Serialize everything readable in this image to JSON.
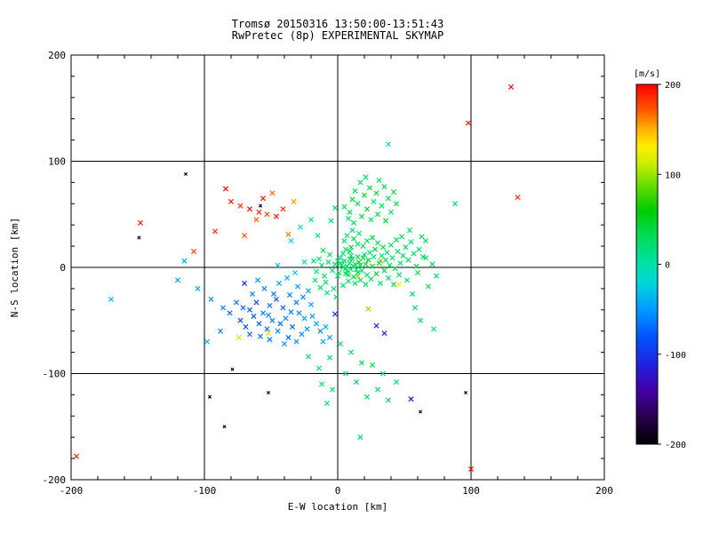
{
  "title": "Tromsø 20150316 13:50:00-13:51:43",
  "subtitle": "RwPretec (8p) EXPERIMENTAL SKYMAP",
  "chart_data": {
    "type": "scatter",
    "marker": "x",
    "title": "Tromsø 20150316 13:50:00-13:51:43",
    "subtitle": "RwPretec (8p) EXPERIMENTAL SKYMAP",
    "xlabel": "E-W location [km]",
    "ylabel": "N-S location [km]",
    "xlim": [
      -200,
      200
    ],
    "ylim": [
      -200,
      200
    ],
    "xticks": [
      -200,
      -100,
      0,
      100,
      200
    ],
    "yticks": [
      -200,
      -100,
      0,
      100,
      200
    ],
    "grid": true,
    "grid_positions": [
      -100,
      0,
      100
    ],
    "background": "#ffffff",
    "axis_color": "#000000",
    "colorbar": {
      "label": "[m/s]",
      "label_color": "#aa0000",
      "lim": [
        -200,
        200
      ],
      "ticks": [
        200,
        100,
        0,
        -100,
        -200
      ]
    },
    "colormap": [
      {
        "t": 0.0,
        "c": "#000000"
      },
      {
        "t": 0.08,
        "c": "#2a0050"
      },
      {
        "t": 0.15,
        "c": "#4400a8"
      },
      {
        "t": 0.22,
        "c": "#2020e0"
      },
      {
        "t": 0.3,
        "c": "#0055ff"
      },
      {
        "t": 0.38,
        "c": "#00a0ff"
      },
      {
        "t": 0.45,
        "c": "#00d8d8"
      },
      {
        "t": 0.5,
        "c": "#00e0a8"
      },
      {
        "t": 0.58,
        "c": "#00dd55"
      },
      {
        "t": 0.65,
        "c": "#00cc00"
      },
      {
        "t": 0.72,
        "c": "#66dd00"
      },
      {
        "t": 0.78,
        "c": "#ccee00"
      },
      {
        "t": 0.83,
        "c": "#ffee00"
      },
      {
        "t": 0.88,
        "c": "#ffaa00"
      },
      {
        "t": 0.93,
        "c": "#ff5500"
      },
      {
        "t": 1.0,
        "c": "#ff0000"
      }
    ],
    "points": [
      [
        3,
        2,
        28
      ],
      [
        6,
        -1,
        35
      ],
      [
        9,
        4,
        22
      ],
      [
        12,
        1,
        41
      ],
      [
        1,
        -5,
        19
      ],
      [
        5,
        6,
        31
      ],
      [
        14,
        -2,
        26
      ],
      [
        -2,
        3,
        24
      ],
      [
        16,
        5,
        44
      ],
      [
        8,
        -7,
        29
      ],
      [
        2,
        9,
        15
      ],
      [
        11,
        8,
        33
      ],
      [
        7,
        -3,
        27
      ],
      [
        0,
        -8,
        22
      ],
      [
        17,
        2,
        38
      ],
      [
        10,
        11,
        18
      ],
      [
        15,
        -5,
        30
      ],
      [
        4,
        13,
        25
      ],
      [
        9,
        15,
        32
      ],
      [
        6,
        17,
        16
      ],
      [
        19,
        9,
        43
      ],
      [
        21,
        3,
        37
      ],
      [
        18,
        -3,
        28
      ],
      [
        20,
        12,
        20
      ],
      [
        23,
        7,
        49
      ],
      [
        22,
        -7,
        24
      ],
      [
        24,
        14,
        21
      ],
      [
        26,
        1,
        53
      ],
      [
        25,
        -11,
        27
      ],
      [
        27,
        10,
        15
      ],
      [
        8,
        -13,
        25
      ],
      [
        13,
        -15,
        32
      ],
      [
        4,
        -17,
        20
      ],
      [
        17,
        -12,
        28
      ],
      [
        21,
        -16,
        23
      ],
      [
        10,
        19,
        36
      ],
      [
        15,
        22,
        29
      ],
      [
        5,
        25,
        17
      ],
      [
        19,
        20,
        36
      ],
      [
        12,
        27,
        43
      ],
      [
        7,
        30,
        24
      ],
      [
        22,
        25,
        32
      ],
      [
        16,
        32,
        28
      ],
      [
        26,
        28,
        39
      ],
      [
        11,
        35,
        20
      ],
      [
        28,
        17,
        46
      ],
      [
        30,
        23,
        27
      ],
      [
        31,
        4,
        34
      ],
      [
        33,
        11,
        22
      ],
      [
        29,
        -6,
        40
      ],
      [
        32,
        -15,
        25
      ],
      [
        34,
        19,
        31
      ],
      [
        36,
        7,
        28
      ],
      [
        35,
        -3,
        36
      ],
      [
        37,
        14,
        23
      ],
      [
        39,
        2,
        42
      ],
      [
        38,
        -10,
        29
      ],
      [
        41,
        9,
        20
      ],
      [
        40,
        21,
        34
      ],
      [
        43,
        -1,
        27
      ],
      [
        42,
        -16,
        32
      ],
      [
        45,
        15,
        25
      ],
      [
        44,
        26,
        39
      ],
      [
        47,
        4,
        22
      ],
      [
        46,
        -7,
        30
      ],
      [
        49,
        11,
        36
      ],
      [
        48,
        29,
        24
      ],
      [
        51,
        19,
        28
      ],
      [
        53,
        7,
        33
      ],
      [
        55,
        24,
        20
      ],
      [
        57,
        13,
        27
      ],
      [
        59,
        1,
        38
      ],
      [
        61,
        17,
        25
      ],
      [
        63,
        29,
        32
      ],
      [
        66,
        9,
        29
      ],
      [
        -4,
        -3,
        21
      ],
      [
        -7,
        5,
        26
      ],
      [
        -10,
        -8,
        18
      ],
      [
        -6,
        12,
        30
      ],
      [
        -12,
        2,
        23
      ],
      [
        -9,
        -14,
        27
      ],
      [
        -14,
        8,
        19
      ],
      [
        -16,
        -4,
        25
      ],
      [
        -11,
        16,
        31
      ],
      [
        -18,
        6,
        22
      ],
      [
        -3,
        -20,
        26
      ],
      [
        -8,
        -24,
        20
      ],
      [
        -13,
        -19,
        28
      ],
      [
        -1,
        -28,
        23
      ],
      [
        -17,
        -12,
        24
      ],
      [
        4,
        0,
        26
      ],
      [
        7,
        1,
        30
      ],
      [
        10,
        -2,
        24
      ],
      [
        2,
        4,
        29
      ],
      [
        13,
        3,
        21
      ],
      [
        6,
        -6,
        33
      ],
      [
        9,
        8,
        25
      ],
      [
        0,
        6,
        18
      ],
      [
        12,
        -9,
        27
      ],
      [
        15,
        10,
        35
      ],
      [
        12,
        42,
        35
      ],
      [
        18,
        48,
        42
      ],
      [
        25,
        45,
        28
      ],
      [
        9,
        52,
        37
      ],
      [
        22,
        55,
        45
      ],
      [
        15,
        60,
        31
      ],
      [
        30,
        50,
        39
      ],
      [
        27,
        62,
        26
      ],
      [
        20,
        68,
        44
      ],
      [
        13,
        72,
        33
      ],
      [
        33,
        58,
        29
      ],
      [
        36,
        44,
        47
      ],
      [
        24,
        75,
        38
      ],
      [
        17,
        80,
        27
      ],
      [
        29,
        70,
        41
      ],
      [
        38,
        65,
        34
      ],
      [
        8,
        46,
        30
      ],
      [
        40,
        52,
        25
      ],
      [
        35,
        76,
        36
      ],
      [
        11,
        64,
        48
      ],
      [
        44,
        60,
        31
      ],
      [
        21,
        85,
        29
      ],
      [
        31,
        82,
        23
      ],
      [
        5,
        57,
        34
      ],
      [
        42,
        71,
        40
      ],
      [
        52,
        -12,
        31
      ],
      [
        56,
        -25,
        27
      ],
      [
        60,
        -5,
        35
      ],
      [
        64,
        10,
        24
      ],
      [
        68,
        -18,
        29
      ],
      [
        71,
        3,
        33
      ],
      [
        58,
        -38,
        26
      ],
      [
        62,
        -50,
        30
      ],
      [
        54,
        35,
        22
      ],
      [
        66,
        25,
        28
      ],
      [
        74,
        -8,
        25
      ],
      [
        72,
        -58,
        26
      ],
      [
        2,
        -72,
        24
      ],
      [
        10,
        -80,
        29
      ],
      [
        -6,
        -85,
        21
      ],
      [
        18,
        -90,
        33
      ],
      [
        -14,
        -95,
        26
      ],
      [
        6,
        -100,
        19
      ],
      [
        14,
        -108,
        28
      ],
      [
        -4,
        -115,
        23
      ],
      [
        26,
        -92,
        35
      ],
      [
        -22,
        -84,
        27
      ],
      [
        34,
        -100,
        30
      ],
      [
        -12,
        -110,
        22
      ],
      [
        22,
        -122,
        31
      ],
      [
        30,
        -115,
        26
      ],
      [
        -8,
        -128,
        20
      ],
      [
        38,
        -125,
        28
      ],
      [
        44,
        -108,
        24
      ],
      [
        17,
        -160,
        25
      ],
      [
        -22,
        -22,
        -48
      ],
      [
        -26,
        -28,
        -56
      ],
      [
        -31,
        -33,
        -65
      ],
      [
        -36,
        -26,
        -58
      ],
      [
        -41,
        -38,
        -72
      ],
      [
        -46,
        -30,
        -79
      ],
      [
        -51,
        -36,
        -68
      ],
      [
        -56,
        -43,
        -62
      ],
      [
        -61,
        -33,
        -84
      ],
      [
        -66,
        -40,
        -76
      ],
      [
        -39,
        -48,
        -60
      ],
      [
        -43,
        -53,
        -70
      ],
      [
        -49,
        -50,
        -64
      ],
      [
        -29,
        -43,
        -55
      ],
      [
        -34,
        -56,
        -71
      ],
      [
        -53,
        -58,
        -67
      ],
      [
        -59,
        -53,
        -75
      ],
      [
        -63,
        -46,
        -82
      ],
      [
        -71,
        -38,
        -73
      ],
      [
        -76,
        -33,
        -64
      ],
      [
        -23,
        -58,
        -52
      ],
      [
        -27,
        -63,
        -59
      ],
      [
        -45,
        -60,
        -57
      ],
      [
        -51,
        -68,
        -63
      ],
      [
        -37,
        -66,
        -69
      ],
      [
        -31,
        -70,
        -55
      ],
      [
        -19,
        -46,
        -50
      ],
      [
        -16,
        -53,
        -47
      ],
      [
        -13,
        -60,
        -56
      ],
      [
        -9,
        -56,
        -43
      ],
      [
        -6,
        -66,
        -51
      ],
      [
        -11,
        -70,
        -46
      ],
      [
        -69,
        -56,
        -78
      ],
      [
        -73,
        -50,
        -86
      ],
      [
        -66,
        -63,
        -72
      ],
      [
        -81,
        -43,
        -68
      ],
      [
        -86,
        -38,
        -60
      ],
      [
        -20,
        -35,
        -44
      ],
      [
        -25,
        -48,
        -53
      ],
      [
        -35,
        -42,
        -61
      ],
      [
        -48,
        -25,
        -66
      ],
      [
        -55,
        -20,
        -58
      ],
      [
        -44,
        -15,
        -49
      ],
      [
        -38,
        -10,
        -42
      ],
      [
        -30,
        -18,
        -46
      ],
      [
        -60,
        -12,
        -54
      ],
      [
        -64,
        -25,
        -63
      ],
      [
        -52,
        -45,
        -59
      ],
      [
        -58,
        -65,
        -65
      ],
      [
        -40,
        -72,
        -52
      ],
      [
        -95,
        -30,
        -55
      ],
      [
        -105,
        -20,
        -48
      ],
      [
        -120,
        -12,
        -50
      ],
      [
        -170,
        -30,
        -35
      ],
      [
        -88,
        -60,
        -58
      ],
      [
        -115,
        6,
        -45
      ],
      [
        38,
        116,
        -20
      ],
      [
        -98,
        -70,
        -38
      ],
      [
        -28,
        38,
        -18
      ],
      [
        -35,
        25,
        -22
      ],
      [
        88,
        60,
        22
      ],
      [
        -20,
        45,
        12
      ],
      [
        -15,
        30,
        8
      ],
      [
        -5,
        44,
        20
      ],
      [
        -2,
        56,
        27
      ],
      [
        -25,
        5,
        -15
      ],
      [
        -32,
        -5,
        -28
      ],
      [
        -45,
        2,
        -35
      ],
      [
        -80,
        62,
        195
      ],
      [
        -73,
        58,
        182
      ],
      [
        -66,
        55,
        200
      ],
      [
        -59,
        52,
        188
      ],
      [
        -53,
        50,
        176
      ],
      [
        -46,
        48,
        194
      ],
      [
        -61,
        45,
        170
      ],
      [
        -41,
        55,
        186
      ],
      [
        -56,
        65,
        192
      ],
      [
        -49,
        70,
        168
      ],
      [
        -84,
        74,
        198
      ],
      [
        -37,
        31,
        162
      ],
      [
        -92,
        34,
        184
      ],
      [
        -108,
        15,
        178
      ],
      [
        -148,
        42,
        190
      ],
      [
        -70,
        30,
        172
      ],
      [
        -33,
        62,
        158
      ],
      [
        130,
        170,
        200
      ],
      [
        98,
        136,
        192
      ],
      [
        100,
        -190,
        196
      ],
      [
        -196,
        -178,
        188
      ],
      [
        135,
        66,
        185
      ],
      [
        -114,
        88,
        -195
      ],
      [
        -149,
        28,
        -185
      ],
      [
        -96,
        -122,
        -200
      ],
      [
        -79,
        -96,
        -188
      ],
      [
        -52,
        -118,
        -182
      ],
      [
        62,
        -136,
        -192
      ],
      [
        -58,
        58,
        -190
      ],
      [
        96,
        -118,
        -178
      ],
      [
        -85,
        -150,
        -180
      ],
      [
        55,
        -124,
        -128
      ],
      [
        35,
        -62,
        -118
      ],
      [
        -70,
        -15,
        -108
      ],
      [
        29,
        -55,
        -112
      ],
      [
        -2,
        -44,
        -95
      ],
      [
        -74,
        -66,
        112
      ],
      [
        23,
        -39,
        96
      ],
      [
        46,
        -16,
        124
      ],
      [
        -52,
        -62,
        135
      ],
      [
        15,
        -8,
        92
      ],
      [
        32,
        6,
        85
      ]
    ]
  }
}
